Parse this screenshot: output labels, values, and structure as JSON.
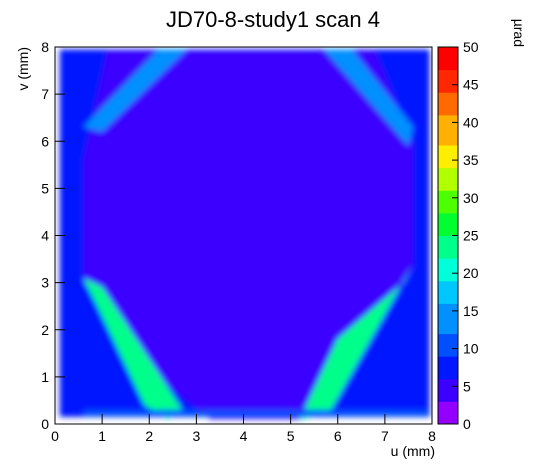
{
  "chart_data": {
    "type": "heatmap",
    "title": "JD70-8-study1 scan 4",
    "xlabel": "u (mm)",
    "ylabel": "v (mm)",
    "zlabel": "µrad",
    "xlim": [
      0,
      8
    ],
    "ylim": [
      0,
      8
    ],
    "zlim": [
      0,
      50
    ],
    "x_ticks": [
      "0",
      "1",
      "2",
      "3",
      "4",
      "5",
      "6",
      "7",
      "8"
    ],
    "y_ticks": [
      "0",
      "1",
      "2",
      "3",
      "4",
      "5",
      "6",
      "7",
      "8"
    ],
    "z_ticks": [
      "0",
      "5",
      "10",
      "15",
      "20",
      "25",
      "30",
      "35",
      "40",
      "45",
      "50"
    ],
    "description_values": {
      "background_level_urad": 5,
      "outer_region_level_urad": 8,
      "edge_band_peak_urad": 22
    },
    "colormap": [
      "#9400ff",
      "#3b00ff",
      "#0018ff",
      "#0050ff",
      "#0090ff",
      "#00c8ff",
      "#00ffd8",
      "#00ff8a",
      "#00ff30",
      "#4dff00",
      "#b2ff00",
      "#ffee00",
      "#ffb000",
      "#ff6a00",
      "#ff2800",
      "#ff0000"
    ],
    "grid": false
  }
}
